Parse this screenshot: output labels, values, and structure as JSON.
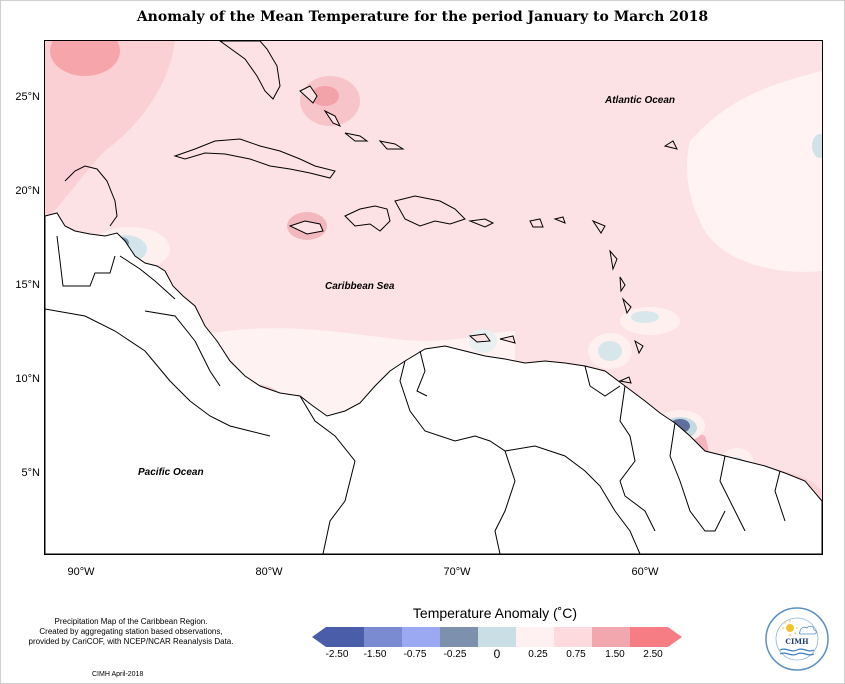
{
  "title": "Anomaly of the Mean Temperature for the period January to March 2018",
  "latitude_labels": [
    "25°N",
    "20°N",
    "15°N",
    "10°N",
    "5°N"
  ],
  "longitude_labels": [
    "90°W",
    "80°W",
    "70°W",
    "60°W"
  ],
  "ocean_labels": {
    "atlantic": "Atlantic Ocean",
    "caribbean": "Caribbean Sea",
    "pacific": "Pacific Ocean"
  },
  "caption": {
    "line1": "Precipitation Map of the Caribbean Region.",
    "line2": "Created by aggregating station based observations,",
    "line3": "provided by CariCOF, with NCEP/NCAR Reanalysis Data."
  },
  "credit": "CIMH April-2018",
  "legend": {
    "title": "Temperature Anomaly (˚C)",
    "ticks": [
      "-2.50",
      "-1.50",
      "-0.75",
      "-0.25",
      "0",
      "0.25",
      "0.75",
      "1.50",
      "2.50"
    ],
    "colors": [
      "#4a5da8",
      "#7b8bd1",
      "#9aa9f2",
      "#7d91ad",
      "#c9dfe5",
      "#fff1f1",
      "#fcdadd",
      "#f2a7ae",
      "#f67d83"
    ]
  },
  "logo": {
    "name": "CIMH",
    "icon": "sun-cloud-icon"
  }
}
